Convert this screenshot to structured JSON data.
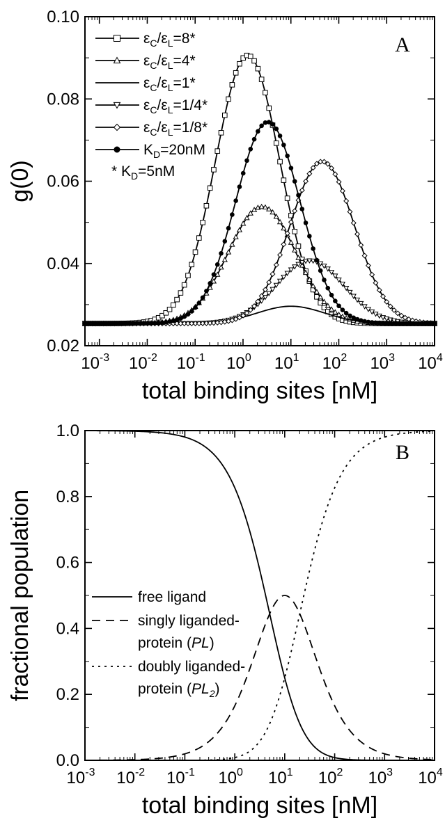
{
  "chart_data": [
    {
      "panel": "A",
      "type": "line",
      "xlabel": "total binding sites [nM]",
      "ylabel": "g(0)",
      "x_scale": "log",
      "xlim": [
        0.0005,
        10000
      ],
      "ylim": [
        0.02,
        0.1
      ],
      "xticks": [
        {
          "value": 0.001,
          "mant": "10",
          "exp": "-3"
        },
        {
          "value": 0.01,
          "mant": "10",
          "exp": "-2"
        },
        {
          "value": 0.1,
          "mant": "10",
          "exp": "-1"
        },
        {
          "value": 1,
          "mant": "10",
          "exp": "0"
        },
        {
          "value": 10,
          "mant": "10",
          "exp": "1"
        },
        {
          "value": 100,
          "mant": "10",
          "exp": "2"
        },
        {
          "value": 1000,
          "mant": "10",
          "exp": "3"
        },
        {
          "value": 10000,
          "mant": "10",
          "exp": "4"
        }
      ],
      "yticks": [
        {
          "value": 0.02,
          "label": "0.02"
        },
        {
          "value": 0.04,
          "label": "0.04"
        },
        {
          "value": 0.06,
          "label": "0.06"
        },
        {
          "value": 0.08,
          "label": "0.08"
        },
        {
          "value": 0.1,
          "label": "0.10"
        }
      ],
      "legend_position": "top-left",
      "series": [
        {
          "name": "εC/εL=8*",
          "label_parts": {
            "a": "ε",
            "s1": "C",
            "b": "/ε",
            "s2": "L",
            "c": "=8*"
          },
          "marker": "square",
          "baseline": 0.0254,
          "peak": 0.0906,
          "peak_x": 1.25,
          "width": 0.95
        },
        {
          "name": "εC/εL=4*",
          "label_parts": {
            "a": "ε",
            "s1": "C",
            "b": "/ε",
            "s2": "L",
            "c": "=4*"
          },
          "marker": "triangle-up",
          "baseline": 0.0254,
          "peak": 0.0538,
          "peak_x": 2.5,
          "width": 1.0
        },
        {
          "name": "εC/εL=1*",
          "label_parts": {
            "a": "ε",
            "s1": "C",
            "b": "/ε",
            "s2": "L",
            "c": "=1*"
          },
          "marker": "none",
          "baseline": 0.0254,
          "peak": 0.0296,
          "peak_x": 10,
          "width": 1.0
        },
        {
          "name": "εC/εL=1/4*",
          "label_parts": {
            "a": "ε",
            "s1": "C",
            "b": "/ε",
            "s2": "L",
            "c": "=1/4*"
          },
          "marker": "triangle-down",
          "baseline": 0.0254,
          "peak": 0.0407,
          "peak_x": 25,
          "width": 1.0
        },
        {
          "name": "εC/εL=1/8*",
          "label_parts": {
            "a": "ε",
            "s1": "C",
            "b": "/ε",
            "s2": "L",
            "c": "=1/8*"
          },
          "marker": "diamond",
          "baseline": 0.0254,
          "peak": 0.0648,
          "peak_x": 45,
          "width": 0.95
        },
        {
          "name": "KD=20nM",
          "label_parts": {
            "a": "K",
            "s1": "D",
            "b": "=20nM",
            "s2": "",
            "c": ""
          },
          "marker": "filled-circle",
          "baseline": 0.0254,
          "peak": 0.0744,
          "peak_x": 3.3,
          "width": 0.95
        }
      ],
      "annotation": {
        "pre": "* K",
        "sub": "D",
        "post": "=5nM"
      }
    },
    {
      "panel": "B",
      "type": "line",
      "xlabel": "total binding sites [nM]",
      "ylabel": "fractional population",
      "x_scale": "log",
      "xlim": [
        0.001,
        10000
      ],
      "ylim": [
        0.0,
        1.0
      ],
      "xticks": [
        {
          "value": 0.001,
          "mant": "10",
          "exp": "-3"
        },
        {
          "value": 0.01,
          "mant": "10",
          "exp": "-2"
        },
        {
          "value": 0.1,
          "mant": "10",
          "exp": "-1"
        },
        {
          "value": 1,
          "mant": "10",
          "exp": "0"
        },
        {
          "value": 10,
          "mant": "10",
          "exp": "1"
        },
        {
          "value": 100,
          "mant": "10",
          "exp": "2"
        },
        {
          "value": 1000,
          "mant": "10",
          "exp": "3"
        },
        {
          "value": 10000,
          "mant": "10",
          "exp": "4"
        }
      ],
      "yticks": [
        {
          "value": 0.0,
          "label": "0.0"
        },
        {
          "value": 0.2,
          "label": "0.2"
        },
        {
          "value": 0.4,
          "label": "0.4"
        },
        {
          "value": 0.6,
          "label": "0.6"
        },
        {
          "value": 0.8,
          "label": "0.8"
        },
        {
          "value": 1.0,
          "label": "1.0"
        }
      ],
      "legend_position": "center-left",
      "binding_constant_nM": 5,
      "series": [
        {
          "name": "free ligand",
          "dash": "solid",
          "lines": [
            {
              "text": "free ligand"
            }
          ]
        },
        {
          "name": "singly liganded-protein (PL)",
          "dash": "dashed",
          "lines": [
            {
              "text": "singly liganded-"
            },
            {
              "text": "protein (",
              "ital": "PL",
              "sub": "",
              "post": ")"
            }
          ]
        },
        {
          "name": "doubly liganded-protein (PL2)",
          "dash": "dotted",
          "lines": [
            {
              "text": "doubly liganded-"
            },
            {
              "text": "protein (",
              "ital": "PL",
              "sub": "2",
              "post": ")"
            }
          ]
        }
      ]
    }
  ],
  "panel_labels": {
    "a": "A",
    "b": "B"
  }
}
